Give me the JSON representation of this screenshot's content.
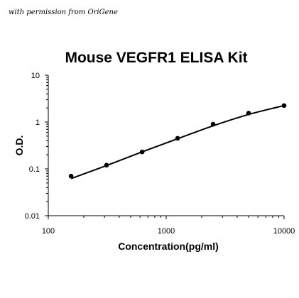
{
  "credit": "with permission from OriGene",
  "chart_data": {
    "type": "scatter",
    "title": "Mouse VEGFR1 ELISA Kit",
    "xlabel": "Concentration(pg/ml)",
    "ylabel": "O.D.",
    "xscale": "log",
    "yscale": "log",
    "xlim": [
      100,
      10000
    ],
    "ylim": [
      0.01,
      10
    ],
    "x_ticks": [
      "100",
      "1000",
      "10000"
    ],
    "y_ticks": [
      "0.01",
      "0.1",
      "1",
      "10"
    ],
    "grid": false,
    "legend": "none",
    "marker_color": "#000000",
    "line_color": "#000000",
    "series": [
      {
        "x": [
          156,
          312,
          625,
          1250,
          2500,
          5000,
          10000
        ],
        "y": [
          0.07,
          0.12,
          0.23,
          0.45,
          0.9,
          1.55,
          2.25
        ]
      }
    ],
    "fit_curve": {
      "x": [
        156,
        312,
        625,
        1250,
        2500,
        5000,
        10000
      ],
      "y": [
        0.062,
        0.118,
        0.23,
        0.44,
        0.83,
        1.45,
        2.25
      ]
    }
  }
}
